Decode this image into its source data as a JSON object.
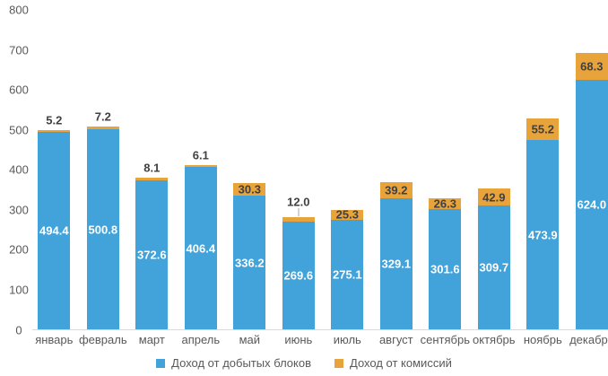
{
  "chart_data": {
    "type": "bar",
    "stacked": true,
    "title": "",
    "xlabel": "",
    "ylabel": "",
    "categories": [
      "январь",
      "февраль",
      "март",
      "апрель",
      "май",
      "июнь",
      "июль",
      "август",
      "сентябрь",
      "октябрь",
      "ноябрь",
      "декабрь"
    ],
    "series": [
      {
        "name": "Доход от добытых блоков",
        "color": "#42a2da",
        "label_color": "#ffffff",
        "values": [
          494.4,
          500.8,
          372.6,
          406.4,
          336.2,
          269.6,
          275.1,
          329.1,
          301.6,
          309.7,
          473.9,
          624.0
        ]
      },
      {
        "name": "Доход от комиссий",
        "color": "#e8a33b",
        "label_color": "#404040",
        "values": [
          5.2,
          7.2,
          8.1,
          6.1,
          30.3,
          12.0,
          25.3,
          39.2,
          26.3,
          42.9,
          55.2,
          68.3
        ],
        "label_placement": [
          "above",
          "above",
          "above",
          "above",
          "inside",
          "above-line",
          "inside",
          "inside",
          "inside",
          "inside",
          "inside",
          "inside"
        ]
      }
    ],
    "ylim": [
      0,
      800
    ],
    "yticks": [
      0,
      100,
      200,
      300,
      400,
      500,
      600,
      700,
      800
    ],
    "grid": false,
    "legend_position": "bottom",
    "axis_text_color": "#595959",
    "baseline_color": "#d9d9d9",
    "leader_line_color": "#a6a6a6",
    "value_decimals": 1
  }
}
